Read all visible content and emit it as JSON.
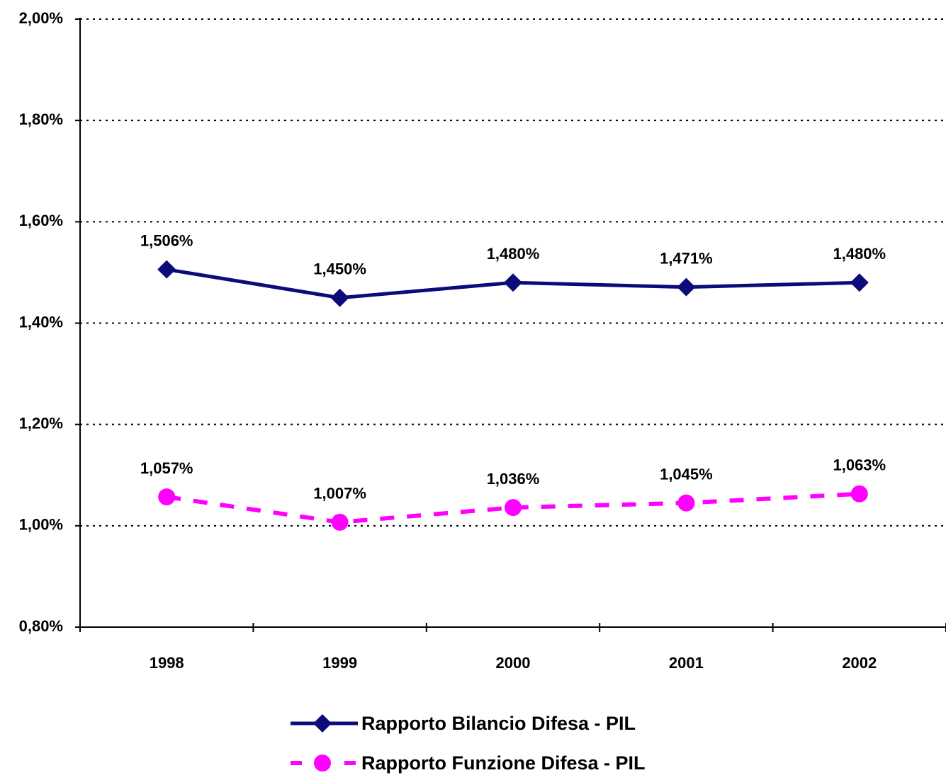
{
  "chart_data": {
    "type": "line",
    "categories": [
      "1998",
      "1999",
      "2000",
      "2001",
      "2002"
    ],
    "series": [
      {
        "name": "Rapporto Bilancio Difesa - PIL",
        "color": "#0b0b7a",
        "marker": "diamond",
        "dash": false,
        "values": [
          1.506,
          1.45,
          1.48,
          1.471,
          1.48
        ],
        "value_labels": [
          "1,506%",
          "1,450%",
          "1,480%",
          "1,471%",
          "1,480%"
        ]
      },
      {
        "name": "Rapporto Funzione Difesa - PIL",
        "color": "#ff00ff",
        "marker": "circle",
        "dash": true,
        "values": [
          1.057,
          1.007,
          1.036,
          1.045,
          1.063
        ],
        "value_labels": [
          "1,057%",
          "1,007%",
          "1,036%",
          "1,045%",
          "1,063%"
        ]
      }
    ],
    "ylim": [
      0.8,
      2.0
    ],
    "yticks": [
      {
        "value": 0.8,
        "label": "0,80%"
      },
      {
        "value": 1.0,
        "label": "1,00%"
      },
      {
        "value": 1.2,
        "label": "1,20%"
      },
      {
        "value": 1.4,
        "label": "1,40%"
      },
      {
        "value": 1.6,
        "label": "1,60%"
      },
      {
        "value": 1.8,
        "label": "1,80%"
      },
      {
        "value": 2.0,
        "label": "2,00%"
      }
    ],
    "grid": true,
    "legend": "bottom"
  }
}
